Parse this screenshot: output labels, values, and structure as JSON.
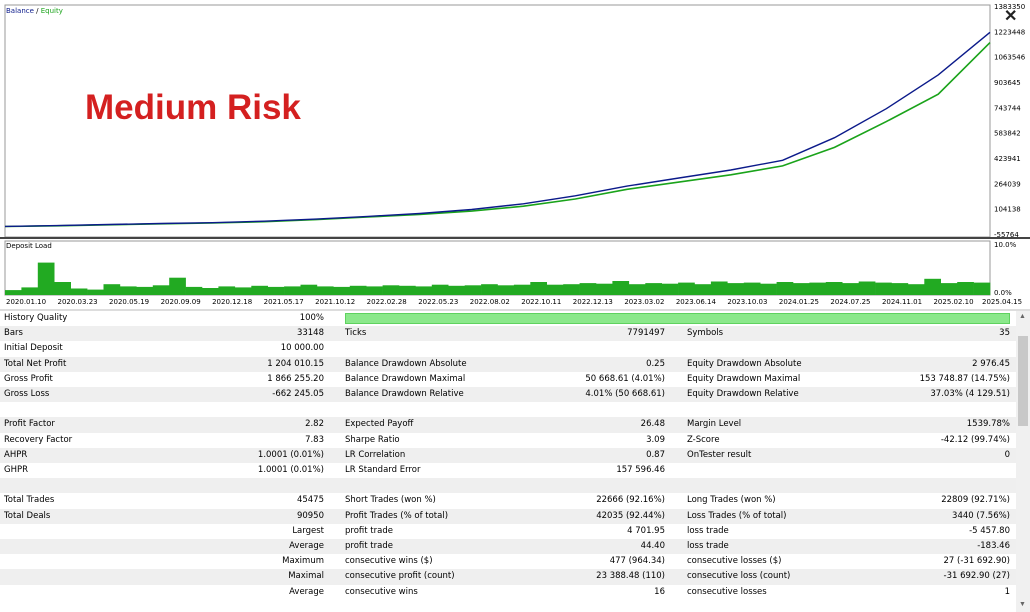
{
  "chart": {
    "legend_balance": "Balance",
    "legend_sep": " / ",
    "legend_equity": "Equity",
    "annotation": "Medium Risk",
    "y_ticks": [
      "1383350",
      "1223448",
      "1063546",
      "903645",
      "743744",
      "583842",
      "423941",
      "264039",
      "104138",
      "-55764"
    ],
    "deposit_load_label": "Deposit Load",
    "deposit_ticks": [
      "10.0%",
      "0.0%"
    ],
    "x_ticks": [
      "2020.01.10",
      "2020.03.23",
      "2020.05.19",
      "2020.09.09",
      "2020.12.18",
      "2021.05.17",
      "2021.10.12",
      "2022.02.28",
      "2022.05.23",
      "2022.08.02",
      "2022.10.11",
      "2022.12.13",
      "2023.03.02",
      "2023.06.14",
      "2023.10.03",
      "2024.01.25",
      "2024.07.25",
      "2024.11.01",
      "2025.02.10",
      "2025.04.15"
    ],
    "colors": {
      "balance": "#0b1a8a",
      "equity": "#1aa31a",
      "load": "#22aa22",
      "annotation": "#d42020"
    }
  },
  "chart_data": {
    "type": "line",
    "x": [
      "2020.01.10",
      "2020.03.23",
      "2020.05.19",
      "2020.09.09",
      "2020.12.18",
      "2021.05.17",
      "2021.10.12",
      "2022.02.28",
      "2022.05.23",
      "2022.08.02",
      "2022.10.11",
      "2022.12.13",
      "2023.03.02",
      "2023.06.14",
      "2023.10.03",
      "2024.01.25",
      "2024.07.25",
      "2024.11.01",
      "2025.02.10",
      "2025.04.15"
    ],
    "series": [
      {
        "name": "Balance",
        "values": [
          10000,
          15000,
          22000,
          28000,
          33000,
          42000,
          55000,
          72000,
          90000,
          115000,
          150000,
          200000,
          260000,
          310000,
          360000,
          420000,
          560000,
          740000,
          950000,
          1214000
        ]
      },
      {
        "name": "Equity",
        "values": [
          9500,
          14000,
          20000,
          26000,
          31000,
          39000,
          52000,
          68000,
          84000,
          105000,
          135000,
          180000,
          240000,
          285000,
          330000,
          385000,
          500000,
          660000,
          830000,
          1150000
        ]
      }
    ],
    "ylim": [
      -55764,
      1383350
    ],
    "xlabel": "",
    "ylabel": ""
  },
  "deposit_load": {
    "values": [
      0.9,
      1.4,
      6.0,
      2.4,
      1.2,
      1.0,
      2.0,
      1.6,
      1.5,
      1.8,
      3.2,
      1.5,
      1.3,
      1.6,
      1.4,
      1.7,
      1.5,
      1.6,
      1.9,
      1.6,
      1.5,
      1.7,
      1.6,
      1.8,
      1.7,
      1.6,
      1.9,
      1.7,
      1.8,
      2.0,
      1.8,
      1.9,
      2.4,
      1.9,
      2.0,
      2.2,
      2.1,
      2.6,
      2.0,
      2.2,
      2.1,
      2.3,
      2.0,
      2.5,
      2.2,
      2.3,
      2.1,
      2.4,
      2.2,
      2.3,
      2.4,
      2.2,
      2.5,
      2.3,
      2.2,
      2.0,
      3.0,
      2.2,
      2.4,
      2.3
    ],
    "ylim": [
      0,
      10
    ]
  },
  "stats": {
    "history_quality_label": "History Quality",
    "history_quality_value": "100%",
    "rows": [
      [
        "Bars",
        "33148",
        "Ticks",
        "7791497",
        "Symbols",
        "35"
      ],
      [
        "Initial Deposit",
        "10 000.00",
        "",
        "",
        "",
        ""
      ],
      [
        "Total Net Profit",
        "1 204 010.15",
        "Balance Drawdown Absolute",
        "0.25",
        "Equity Drawdown Absolute",
        "2 976.45"
      ],
      [
        "Gross Profit",
        "1 866 255.20",
        "Balance Drawdown Maximal",
        "50 668.61 (4.01%)",
        "Equity Drawdown Maximal",
        "153 748.87 (14.75%)"
      ],
      [
        "Gross Loss",
        "-662 245.05",
        "Balance Drawdown Relative",
        "4.01% (50 668.61)",
        "Equity Drawdown Relative",
        "37.03% (4 129.51)"
      ],
      [
        "",
        "",
        "",
        "",
        "",
        ""
      ],
      [
        "Profit Factor",
        "2.82",
        "Expected Payoff",
        "26.48",
        "Margin Level",
        "1539.78%"
      ],
      [
        "Recovery Factor",
        "7.83",
        "Sharpe Ratio",
        "3.09",
        "Z-Score",
        "-42.12 (99.74%)"
      ],
      [
        "AHPR",
        "1.0001 (0.01%)",
        "LR Correlation",
        "0.87",
        "OnTester result",
        "0"
      ],
      [
        "GHPR",
        "1.0001 (0.01%)",
        "LR Standard Error",
        "157 596.46",
        "",
        ""
      ],
      [
        "",
        "",
        "",
        "",
        "",
        ""
      ],
      [
        "Total Trades",
        "45475",
        "Short Trades (won %)",
        "22666 (92.16%)",
        "Long Trades (won %)",
        "22809 (92.71%)"
      ],
      [
        "Total Deals",
        "90950",
        "Profit Trades (% of total)",
        "42035 (92.44%)",
        "Loss Trades (% of total)",
        "3440 (7.56%)"
      ],
      [
        "",
        "Largest",
        "profit trade",
        "4 701.95",
        "loss trade",
        "-5 457.80"
      ],
      [
        "",
        "Average",
        "profit trade",
        "44.40",
        "loss trade",
        "-183.46"
      ],
      [
        "",
        "Maximum",
        "consecutive wins ($)",
        "477 (964.34)",
        "consecutive losses ($)",
        "27 (-31 692.90)"
      ],
      [
        "",
        "Maximal",
        "consecutive profit (count)",
        "23 388.48 (110)",
        "consecutive loss (count)",
        "-31 692.90 (27)"
      ],
      [
        "",
        "Average",
        "consecutive wins",
        "16",
        "consecutive losses",
        "1"
      ]
    ]
  }
}
